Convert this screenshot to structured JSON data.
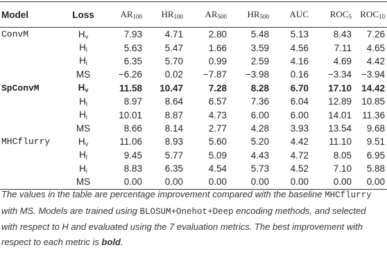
{
  "table": {
    "header": [
      {
        "text": "Model"
      },
      {
        "text": "Loss"
      },
      {
        "base": "AR",
        "sub": "100"
      },
      {
        "base": "HR",
        "sub": "100"
      },
      {
        "base": "AR",
        "sub": "500"
      },
      {
        "base": "HR",
        "sub": "500"
      },
      {
        "text": "AUC"
      },
      {
        "base": "ROC",
        "sub": "5"
      },
      {
        "base": "ROC",
        "sub": "10"
      }
    ],
    "rows": [
      {
        "model": "ConvM",
        "loss": {
          "base": "H",
          "sub": "v"
        },
        "values": [
          "7.93",
          "4.71",
          "2.80",
          "5.48",
          "5.13",
          "8.43",
          "7.26"
        ]
      },
      {
        "loss": {
          "base": "H",
          "sub": "l"
        },
        "values": [
          "5.63",
          "5.47",
          "1.66",
          "3.59",
          "4.56",
          "7.11",
          "4.65"
        ]
      },
      {
        "loss": {
          "base": "H",
          "sub": "i"
        },
        "values": [
          "6.35",
          "5.70",
          "0.99",
          "2.59",
          "4.16",
          "4.69",
          "4.42"
        ]
      },
      {
        "loss": {
          "text": "MS"
        },
        "values": [
          "−6.26",
          "0.02",
          "−7.87",
          "−3.98",
          "0.16",
          "−3.34",
          "−3.94"
        ]
      },
      {
        "model": "SpConvM",
        "loss": {
          "base": "H",
          "sub": "v"
        },
        "values": [
          "11.58",
          "10.47",
          "7.28",
          "8.28",
          "6.70",
          "17.10",
          "14.42"
        ],
        "bold": true
      },
      {
        "loss": {
          "base": "H",
          "sub": "l"
        },
        "values": [
          "8.97",
          "8.64",
          "6.57",
          "7.36",
          "6.04",
          "12.89",
          "10.85"
        ]
      },
      {
        "loss": {
          "base": "H",
          "sub": "i"
        },
        "values": [
          "10.01",
          "8.87",
          "4.73",
          "6.00",
          "6.00",
          "14.01",
          "11.36"
        ]
      },
      {
        "loss": {
          "text": "MS"
        },
        "values": [
          "8.66",
          "8.14",
          "2.77",
          "4.28",
          "3.93",
          "13.54",
          "9.68"
        ]
      },
      {
        "model": "MHCflurry",
        "loss": {
          "base": "H",
          "sub": "v"
        },
        "values": [
          "11.06",
          "8.93",
          "5.60",
          "5.20",
          "4.42",
          "11.10",
          "9.51"
        ]
      },
      {
        "loss": {
          "base": "H",
          "sub": "l"
        },
        "values": [
          "9.45",
          "5.77",
          "5.09",
          "4.43",
          "4.72",
          "8.05",
          "6.95"
        ]
      },
      {
        "loss": {
          "base": "H",
          "sub": "i"
        },
        "values": [
          "8.83",
          "6.35",
          "4.54",
          "5.73",
          "4.52",
          "7.10",
          "5.88"
        ]
      },
      {
        "loss": {
          "text": "MS"
        },
        "values": [
          "0.00",
          "0.00",
          "0.00",
          "0.00",
          "0.00",
          "0.00",
          "0.00"
        ]
      }
    ]
  },
  "caption": [
    {
      "text": "The values in the table are percentage improvement compared with the baseline "
    },
    {
      "text": "MHCflurry",
      "style": "mono"
    },
    {
      "text": " with MS. Models are trained using "
    },
    {
      "text": "BLOSUM",
      "style": "mono"
    },
    {
      "text": "+"
    },
    {
      "text": "Onehot",
      "style": "mono"
    },
    {
      "text": "+"
    },
    {
      "text": "Deep",
      "style": "mono"
    },
    {
      "text": " encoding methods, and selected with respect to H and evaluated using the 7 evaluation metrics. The best improvement with respect to each metric is "
    },
    {
      "text": "bold",
      "style": "bold"
    },
    {
      "text": "."
    }
  ]
}
